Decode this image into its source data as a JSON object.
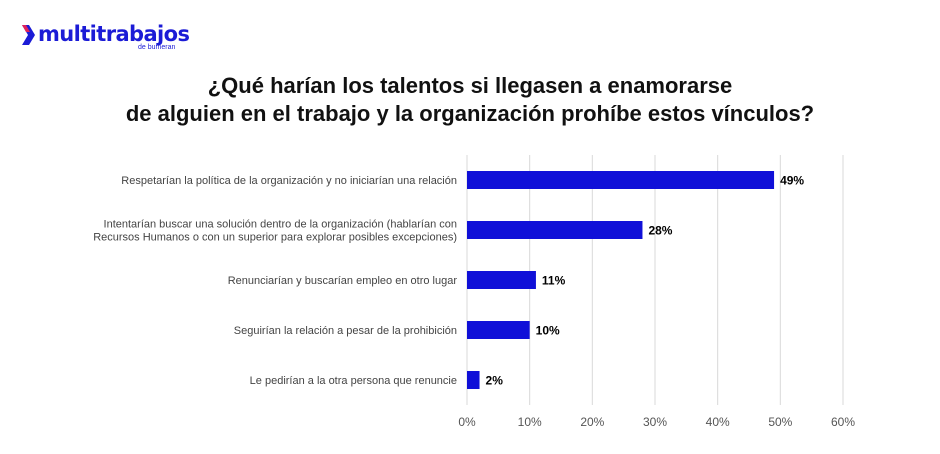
{
  "logo": {
    "text": "multitrabajos",
    "subtext": "de bumeran",
    "brand_color": "#1b1bd6"
  },
  "chart_data": {
    "type": "bar",
    "orientation": "horizontal",
    "title_lines": [
      "¿Qué harían los talentos si llegasen a enamorarse",
      "de alguien en el trabajo y la organización prohíbe estos vínculos?"
    ],
    "categories": [
      [
        "Respetarían la política de la organización y no iniciarían una relación"
      ],
      [
        "Intentarían buscar una solución dentro de la organización (hablarían con",
        "Recursos Humanos o con un superior para explorar posibles excepciones)"
      ],
      [
        "Renunciarían y buscarían empleo en otro lugar"
      ],
      [
        "Seguirían la relación a pesar de la prohibición"
      ],
      [
        "Le pedirían a la otra persona que renuncie"
      ]
    ],
    "values": [
      49,
      28,
      11,
      10,
      2
    ],
    "data_labels": [
      "49%",
      "28%",
      "11%",
      "10%",
      "2%"
    ],
    "x_ticks": [
      "0%",
      "10%",
      "20%",
      "30%",
      "40%",
      "50%",
      "60%"
    ],
    "xlim": [
      0,
      60
    ],
    "grid": true,
    "legend": "none",
    "bar_color": "#1010d8",
    "grid_color": "#d9d9d9"
  }
}
